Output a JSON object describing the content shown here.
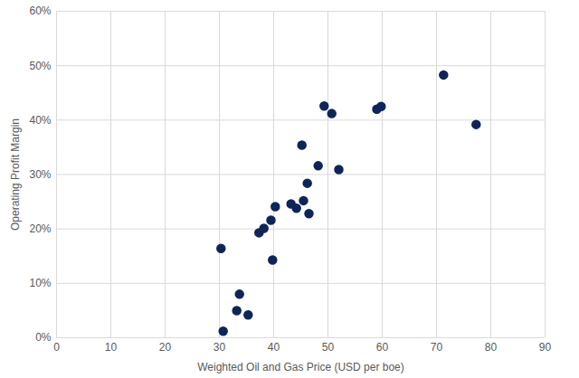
{
  "chart_data": {
    "type": "scatter",
    "x_label": "Weighted Oil and Gas Price (USD per boe)",
    "y_label": "Operating Profit Margin",
    "x": [
      30.3,
      30.7,
      33.2,
      33.7,
      35.3,
      37.3,
      38.2,
      39.5,
      39.8,
      40.3,
      43.2,
      44.2,
      45.5,
      45.2,
      46.2,
      46.5,
      48.2,
      49.3,
      50.7,
      52.0,
      59.0,
      59.8,
      71.3,
      77.3
    ],
    "values": [
      16.4,
      1.2,
      5.0,
      8.0,
      4.2,
      19.3,
      20.1,
      21.6,
      14.3,
      24.1,
      24.6,
      23.8,
      25.2,
      35.4,
      28.4,
      22.8,
      31.6,
      42.6,
      41.2,
      30.9,
      42.0,
      42.5,
      48.3,
      39.2
    ],
    "color": "#0f2558",
    "marker": "circle",
    "xlim": [
      0,
      90
    ],
    "xticks": [
      0,
      10,
      20,
      30,
      40,
      50,
      60,
      70,
      80,
      90
    ],
    "ylim": [
      0,
      60
    ],
    "yticks": [
      {
        "value": 0,
        "label": "0%"
      },
      {
        "value": 10,
        "label": "10%"
      },
      {
        "value": 20,
        "label": "20%"
      },
      {
        "value": 30,
        "label": "30%"
      },
      {
        "value": 40,
        "label": "40%"
      },
      {
        "value": 50,
        "label": "50%"
      },
      {
        "value": 60,
        "label": "60%"
      }
    ],
    "grid": true
  }
}
